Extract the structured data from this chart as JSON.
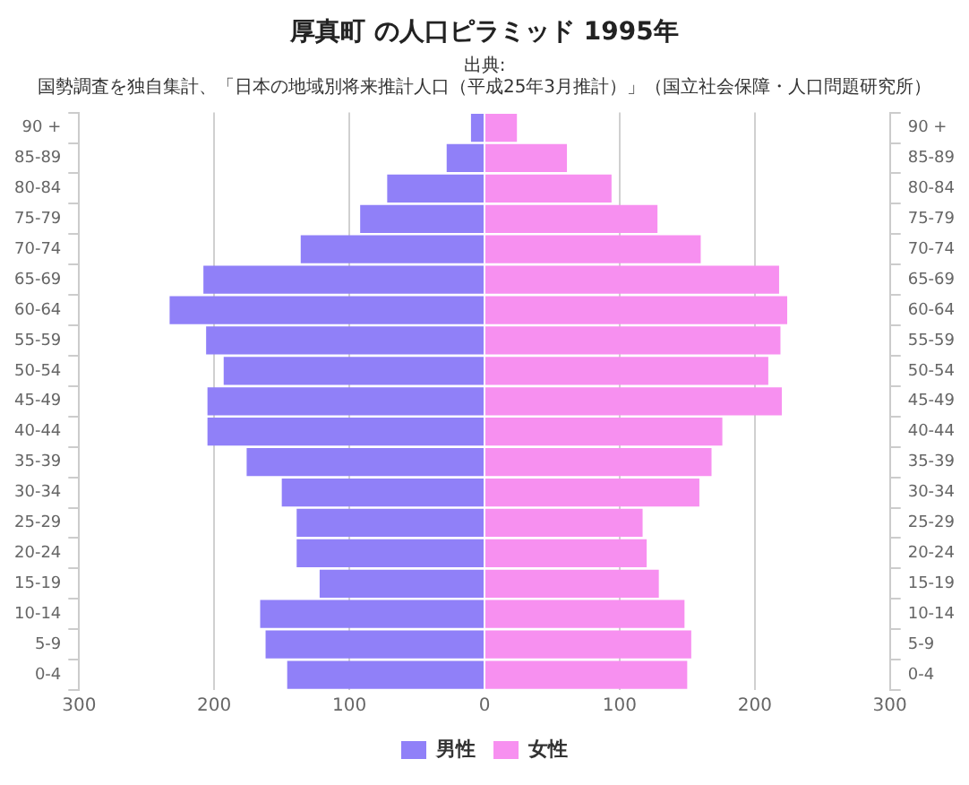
{
  "chart_data": {
    "type": "bar",
    "orientation": "horizontal",
    "stacked": true,
    "title": "厚真町 の人口ピラミッド 1995年",
    "annotations": [
      "出典:",
      "国勢調査を独自集計、「日本の地域別将来推計人口（平成25年3月推計）」（国立社会保障・人口問題研究所）"
    ],
    "categories": [
      "90 +",
      "85-89",
      "80-84",
      "75-79",
      "70-74",
      "65-69",
      "60-64",
      "55-59",
      "50-54",
      "45-49",
      "40-44",
      "35-39",
      "30-34",
      "25-29",
      "20-24",
      "15-19",
      "10-14",
      "5-9",
      "0-4"
    ],
    "series": [
      {
        "name": "男性",
        "color": "#9080f8",
        "values": [
          -10,
          -28,
          -72,
          -92,
          -136,
          -208,
          -233,
          -206,
          -193,
          -205,
          -205,
          -176,
          -150,
          -139,
          -139,
          -122,
          -166,
          -162,
          -146
        ]
      },
      {
        "name": "女性",
        "color": "#f790f0",
        "values": [
          24,
          61,
          94,
          128,
          160,
          218,
          224,
          219,
          210,
          220,
          176,
          168,
          159,
          117,
          120,
          129,
          148,
          153,
          150
        ]
      }
    ],
    "xlim": [
      -300,
      300
    ],
    "xticks": [
      {
        "value": -300,
        "label": "300"
      },
      {
        "value": -200,
        "label": "200"
      },
      {
        "value": -100,
        "label": "100"
      },
      0,
      100,
      200,
      300
    ],
    "grid": "x",
    "legend": "bottom"
  }
}
